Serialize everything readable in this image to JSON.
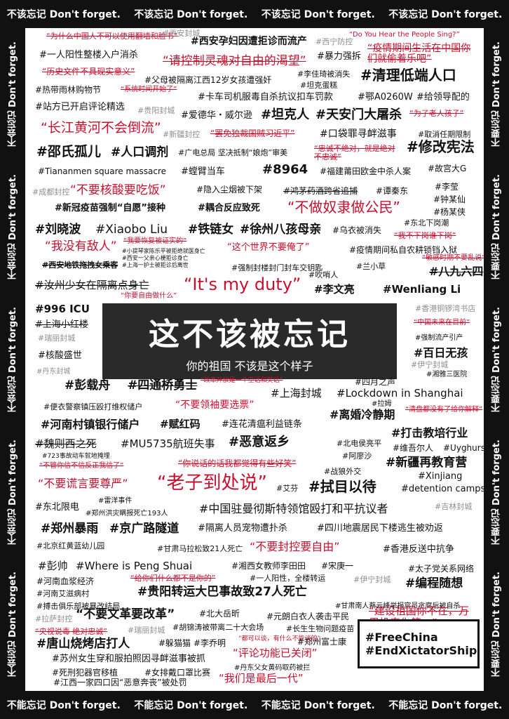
{
  "frame": {
    "top": [
      "不该忘记 Don't forget.",
      "不该忘记 Don't forget.",
      "不该忘记 Don't forget.",
      "不该忘记 Don't forget."
    ],
    "bottom": [
      "不能忘记 Don't forget.",
      "不能忘记 Don't forget.",
      "不能忘记 Don't forget.",
      "不能忘记 Don't forget."
    ],
    "left": [
      "不会忘记 Don't forget.",
      "不会忘记 Don't forget.",
      "不会忘记 Don't forget.",
      "不会忘记 Don't forget.",
      "不会忘记 Don't forget."
    ],
    "right": [
      "不要忘记 Don't forget.",
      "不要忘记 Don't forget.",
      "不要忘记 Don't forget.",
      "不要忘记 Don't forget.",
      "不要忘记 Don't forget."
    ]
  },
  "center": {
    "title": "这不该被忘记",
    "subtitle": "你的祖国 不该是这个样子"
  },
  "hashtags": {
    "free_china": "#FreeChina",
    "end_xictatorship": "#EndXictatorShip"
  },
  "phrases": [
    "“为什么中国人不可以使用翻墙和脸书”",
    "#西安封城",
    "#西安孕妇因遭拒诊而流产",
    "#西宁防控",
    "“Do You Hear the People Sing?”",
    "#一人阳性整楼入户消杀",
    "“请控制灵魂对自由的渴望”",
    "#暴力强拆",
    "“疫情期间生活在中国你们就偷着乐吧”",
    "“历史文件不具现实意义”",
    "#父母被隔离江西12岁女孩遭强奸",
    "#李佳琦被消失",
    "#清理低端人口",
    "#热带雨林购物节",
    "“系统时间开始了”",
    "#坦克蛋糕",
    "#卡车司机服毒自杀抗议扣车罚款",
    "#鄂A0260W",
    "#给领导配的",
    "#站方已开启评论精选",
    "#贵阳封城",
    "#爱德华・威尔逊",
    "#坦克人",
    "#天安门大屠杀",
    "“为了老人孩子”",
    "“长江黄河不会倒流”",
    "#新疆封控",
    "“罢免独裁国贼习近平”",
    "#口袋罪寻衅滋事",
    "#取消任期限制",
    "#邵氏孤儿",
    "#人口调剂",
    "#广电总局 坚决抵制“娘炮”审美",
    "“忠诚不绝对，就是绝对不忠诚”",
    "#修改宪法",
    "#Tiananmen square massacre",
    "#螳臂当车",
    "#8964",
    "#福建莆田欧金中杀人案",
    "#故宫大G",
    "#成都封控",
    "“不要核酸要吃饭”",
    "#隐入尘烟被下架",
    "#鸿茅药酒跨省追捕",
    "#谭秦东",
    "#李莹",
    "#新冠疫苗强制“自愿”接种",
    "#耦合反应致死",
    "“不做奴隶做公民”",
    "#钟某仙",
    "#杨某侠",
    "#刘晓波",
    "#Xiaobo Liu",
    "#铁链女",
    "#徐州八孩母亲",
    "#乌衣被消失",
    "#东北下岗潮",
    "“我没有敌人”",
    "“我要恢复被证实的”",
    "“这个世界不要俺了”",
    "“我不下岗谁下岗”",
    "#疫情期间私自农耕锁铛入狱",
    "#小提琴家陈乐平被拒绝就医身亡",
    "#西安一父亲心梗拒诊身亡",
    "#上海一护士被拒诊后离世",
    "#西安地铁拖拽女乘客",
    "#强制封楼封门封车交钥匙",
    "#兰小草",
    "#吹哨人",
    "#八九六四",
    "“敏感时期不要乱说”",
    "#汝州少女在隔离点身亡",
    "“It's my duty”",
    "#李文亮",
    "#Wenliang Li",
    "“你要自由做什么”",
    "#996 ICU",
    "#香港铜锣湾书店",
    "#上海小红楼",
    "#瑞丽封城",
    "“中国未来在目前”",
    "#强制流产引产",
    "#核酸盛世",
    "#百日无孩",
    "#丹东封城",
    "#伊宁封城",
    "#湘雅三医院",
    "#彭载舟",
    "#四通桥勇士",
    "“改革开放是一个空话和笑话”",
    "#四月之声",
    "#上海封城",
    "#Lockdown in Shanghai",
    "#便衣警察镇压殴打维权储户",
    "“不要领袖要选票”",
    "#拉姆",
    "“清盘都没有了给你解释”",
    "#河南村镇银行储户",
    "#赋红码",
    "#连花清瘟利益链条",
    "#离婚冷静期",
    "#魏则西之死",
    "#MU5735航班失事",
    "#恶意返乡",
    "#北电侯亮平",
    "#打击教培行业",
    "#维吾尔人",
    "#Uyghurs",
    "#723事故动车就地掩埋",
    "“不管你信不信反正我信了”",
    "“你说话的话我都觉得有些好笑”",
    "#阿廖沙",
    "#新疆再教育营",
    "#Xinjiang",
    "“不要谎言要尊严”",
    "“老子到处说”",
    "#战狼外交",
    "#艾芬",
    "#拭目以待",
    "#detention camps",
    "#东北限电",
    "#雷洋事件",
    "#郑州洪灾瞒报死亡193人",
    "#中国驻曼彻斯特领馆殴打和平抗议者",
    "#吉林封城",
    "#郑州暴雨",
    "#京广路隧道",
    "#隔离人员宠物遭扑杀",
    "#四川地震居民下楼逃生被劝返",
    "#北京红黄蓝幼儿园",
    "#甘肃马拉松致21人死亡",
    "“不要封控要自由”",
    "#香港反送中抗争",
    "#彭帅",
    "#Where is Peng Shuai",
    "#湘西女教师李田田",
    "#宋庚一",
    "#太子党关系网络",
    "#河南血浆经济",
    "“给你们什么都不是你的”",
    "#一人阳性，全楼转运",
    "#伊宁封城",
    "#编程随想",
    "#河南艾滋病村",
    "#贵阳转运大巴事故致27人死亡",
    "#搏击俱乐部被暴改结局",
    "#甘肃南人蔡云峰举报官员贪腐后被自杀",
    "#拉萨封控",
    "“不要文革要改革”",
    "#北大岳昕",
    "#元朗白衣人袭击平民",
    "“建设祖国你不在，万里投毒你第一”",
    "“央视说毒 绝对忠诚”",
    "#瑞丽封城",
    "#胡锦涛被带离二十大会场",
    "#长生生物问题疫苗",
    "#唐山烧烤店打人",
    "#躲猫猫",
    "#李乔明",
    "“都可以谈，有什么不能谈的”",
    "#郑州富士康",
    "#苏州女生穿和服拍照因寻衅滋事被抓",
    "“评论功能已关闭”",
    "#死刑犯器官移植",
    "#女排戴口罩比赛",
    "#丹东父女黄码取药被拦",
    "#江西一家四口因“恶意奔丧”被处罚",
    "“我们是最后一代”"
  ]
}
